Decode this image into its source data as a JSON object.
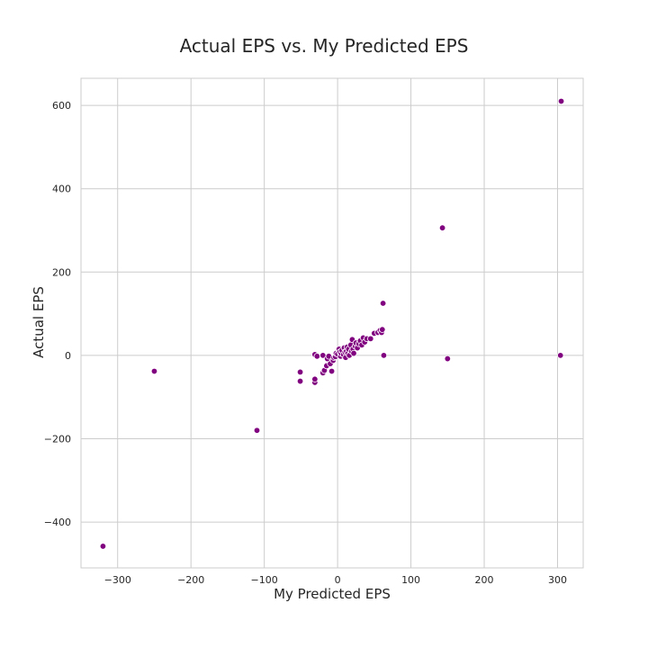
{
  "chart_data": {
    "type": "scatter",
    "title": "Actual EPS vs. My Predicted EPS",
    "xlabel": "My Predicted EPS",
    "ylabel": "Actual EPS",
    "xlim": [
      -350,
      335
    ],
    "ylim": [
      -510,
      665
    ],
    "xticks": [
      -300,
      -200,
      -100,
      0,
      100,
      200,
      300
    ],
    "yticks": [
      -400,
      -200,
      0,
      200,
      400,
      600
    ],
    "grid": true,
    "marker_color": "#800080",
    "marker_edge_color": "#ffffff",
    "points": [
      {
        "x": -320,
        "y": -458
      },
      {
        "x": -250,
        "y": -38
      },
      {
        "x": -110,
        "y": -180
      },
      {
        "x": -51,
        "y": -40
      },
      {
        "x": -51,
        "y": -62
      },
      {
        "x": -31,
        "y": -65
      },
      {
        "x": -31,
        "y": -57
      },
      {
        "x": -31,
        "y": 2
      },
      {
        "x": -28,
        "y": -2
      },
      {
        "x": -20,
        "y": -42
      },
      {
        "x": -18,
        "y": -36
      },
      {
        "x": -20,
        "y": 0
      },
      {
        "x": -15,
        "y": -25
      },
      {
        "x": -14,
        "y": -8
      },
      {
        "x": -12,
        "y": -2
      },
      {
        "x": -10,
        "y": -20
      },
      {
        "x": -8,
        "y": -38
      },
      {
        "x": -6,
        "y": -12
      },
      {
        "x": -5,
        "y": -5
      },
      {
        "x": -3,
        "y": -3
      },
      {
        "x": -2,
        "y": 5
      },
      {
        "x": 0,
        "y": 3
      },
      {
        "x": 2,
        "y": 15
      },
      {
        "x": 3,
        "y": 8
      },
      {
        "x": 4,
        "y": -2
      },
      {
        "x": 5,
        "y": 5
      },
      {
        "x": 6,
        "y": 12
      },
      {
        "x": 8,
        "y": 2
      },
      {
        "x": 9,
        "y": 18
      },
      {
        "x": 10,
        "y": 8
      },
      {
        "x": 11,
        "y": -5
      },
      {
        "x": 12,
        "y": 10
      },
      {
        "x": 13,
        "y": 20
      },
      {
        "x": 14,
        "y": 5
      },
      {
        "x": 15,
        "y": 15
      },
      {
        "x": 16,
        "y": 0
      },
      {
        "x": 18,
        "y": 25
      },
      {
        "x": 19,
        "y": 10
      },
      {
        "x": 20,
        "y": 38
      },
      {
        "x": 21,
        "y": 15
      },
      {
        "x": 22,
        "y": 5
      },
      {
        "x": 24,
        "y": 22
      },
      {
        "x": 25,
        "y": 30
      },
      {
        "x": 27,
        "y": 18
      },
      {
        "x": 29,
        "y": 28
      },
      {
        "x": 31,
        "y": 35
      },
      {
        "x": 33,
        "y": 25
      },
      {
        "x": 35,
        "y": 42
      },
      {
        "x": 37,
        "y": 32
      },
      {
        "x": 40,
        "y": 40
      },
      {
        "x": 45,
        "y": 40
      },
      {
        "x": 50,
        "y": 53
      },
      {
        "x": 55,
        "y": 55
      },
      {
        "x": 58,
        "y": 60
      },
      {
        "x": 60,
        "y": 55
      },
      {
        "x": 61,
        "y": 62
      },
      {
        "x": 62,
        "y": 125
      },
      {
        "x": 63,
        "y": 0
      },
      {
        "x": 143,
        "y": 306
      },
      {
        "x": 150,
        "y": -8
      },
      {
        "x": 305,
        "y": 610
      },
      {
        "x": 304,
        "y": 0
      }
    ]
  }
}
